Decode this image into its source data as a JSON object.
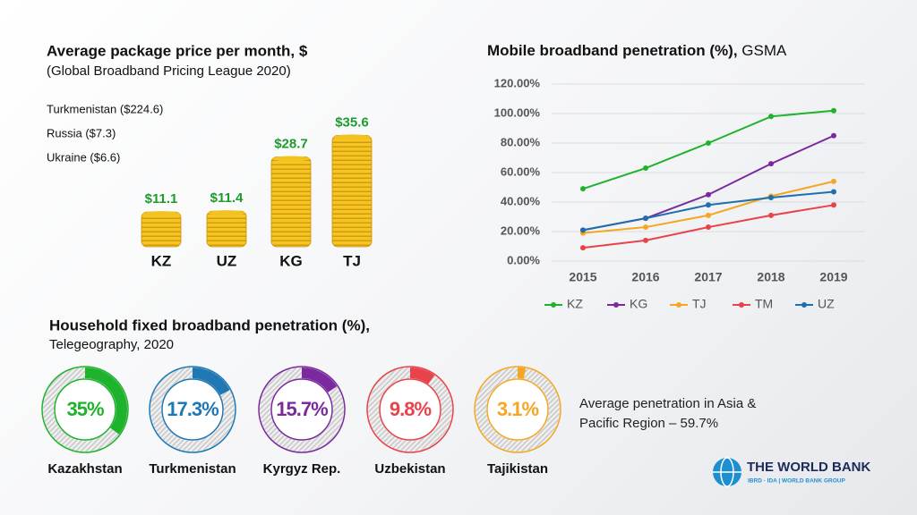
{
  "chart_data": [
    {
      "type": "coins",
      "title": "Average package price per month, $",
      "subtitle": "(Global Broadband Pricing League 2020)",
      "annotations": [
        "Turkmenistan ($224.6)",
        "Russia ($7.3)",
        "Ukraine ($6.6)"
      ],
      "categories": [
        "KZ",
        "UZ",
        "KG",
        "TJ"
      ],
      "values": [
        11.1,
        11.4,
        28.7,
        35.6
      ],
      "value_labels": [
        "$11.1",
        "$11.4",
        "$28.7",
        "$35.6"
      ],
      "color": "#f2c320",
      "label_color": "#1e9a2e"
    },
    {
      "type": "line",
      "title": "Mobile broadband penetration (%),",
      "subtitle": "GSMA",
      "categories": [
        "2015",
        "2016",
        "2017",
        "2018",
        "2019"
      ],
      "series": [
        {
          "name": "KZ",
          "color": "#1fb22c",
          "values": [
            49,
            63,
            80,
            98,
            102
          ]
        },
        {
          "name": "KG",
          "color": "#7a2a9e",
          "values": [
            21,
            29,
            45,
            66,
            85
          ]
        },
        {
          "name": "TJ",
          "color": "#f5a623",
          "values": [
            19,
            23,
            31,
            44,
            54
          ]
        },
        {
          "name": "TM",
          "color": "#e8424a",
          "values": [
            9,
            14,
            23,
            31,
            38
          ]
        },
        {
          "name": "UZ",
          "color": "#1f6fae",
          "values": [
            21,
            29,
            38,
            43,
            47
          ]
        }
      ],
      "ylim": [
        0,
        120
      ],
      "yticks": [
        {
          "value": 0,
          "label": "0.00%"
        },
        {
          "value": 20,
          "label": "20.00%"
        },
        {
          "value": 40,
          "label": "40.00%"
        },
        {
          "value": 60,
          "label": "60.00%"
        },
        {
          "value": 80,
          "label": "80.00%"
        },
        {
          "value": 100,
          "label": "100.00%"
        },
        {
          "value": 120,
          "label": "120.00%"
        }
      ],
      "grid": true,
      "legend": "bottom"
    },
    {
      "type": "donut",
      "title": "Household fixed broadband penetration (%),",
      "subtitle": "Telegeography, 2020",
      "categories": [
        "Kazakhstan",
        "Turkmenistan",
        "Kyrgyz Rep.",
        "Uzbekistan",
        "Tajikistan"
      ],
      "values": [
        35,
        17.3,
        15.7,
        9.8,
        3.1
      ],
      "value_labels": [
        "35%",
        "17.3%",
        "15.7%",
        "9.8%",
        "3.1%"
      ],
      "colors": [
        "#1fb22c",
        "#1f78b4",
        "#7a2a9e",
        "#e8424a",
        "#f5a623"
      ],
      "annotation": "Average penetration in Asia & Pacific Region – 59.7%"
    }
  ],
  "logo": {
    "name": "THE WORLD BANK",
    "tagline": "IBRD · IDA | WORLD BANK GROUP"
  }
}
